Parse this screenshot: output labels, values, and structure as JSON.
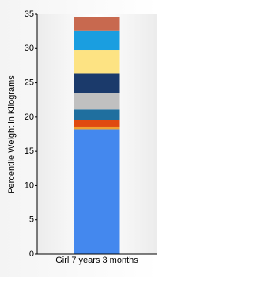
{
  "chart_data": {
    "type": "stacked-bar",
    "y_label": "Percentile Weight in Kilograms",
    "categories": [
      "Girl 7 years 3 months"
    ],
    "series": [
      {
        "color": "#4488ee",
        "values": [
          18.2
        ]
      },
      {
        "color": "#f0a030",
        "values": [
          0.4
        ]
      },
      {
        "color": "#e04a10",
        "values": [
          1.0
        ]
      },
      {
        "color": "#1f6f9f",
        "values": [
          1.5
        ]
      },
      {
        "color": "#c0c0c0",
        "values": [
          2.4
        ]
      },
      {
        "color": "#1b3a6b",
        "values": [
          2.9
        ]
      },
      {
        "color": "#fde383",
        "values": [
          3.4
        ]
      },
      {
        "color": "#1a9ee0",
        "values": [
          2.8
        ]
      },
      {
        "color": "#c8694f",
        "values": [
          2.0
        ]
      }
    ],
    "ylim": [
      0,
      35
    ],
    "yticks": [
      0,
      5,
      10,
      15,
      20,
      25,
      30,
      35
    ],
    "grid": false
  }
}
